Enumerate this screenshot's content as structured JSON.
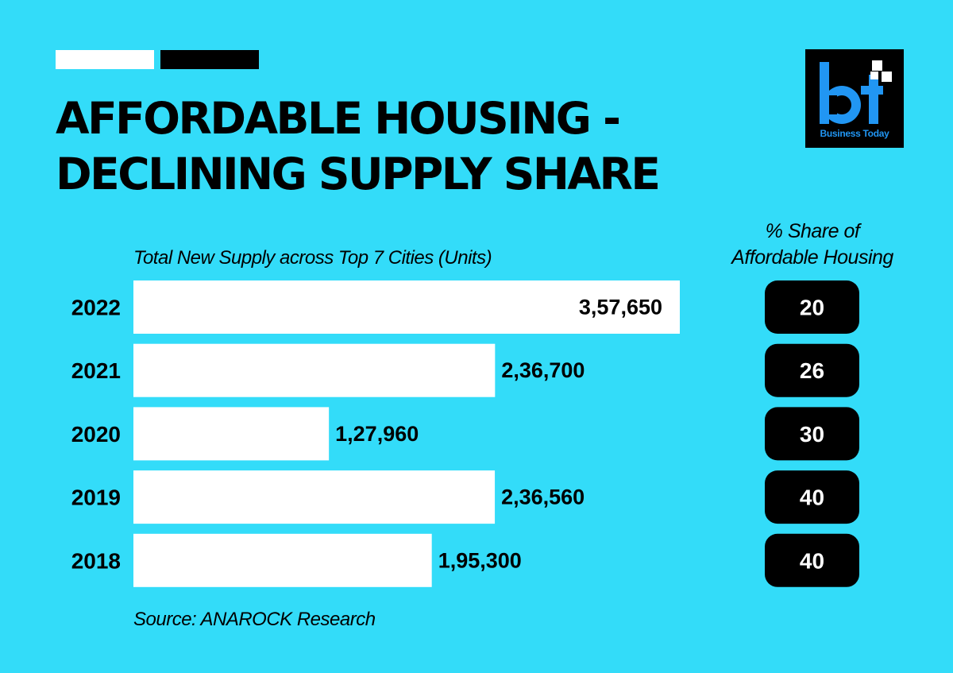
{
  "header": {
    "title_line1": "AFFORDABLE HOUSING -",
    "title_line2": "DECLINING SUPPLY SHARE"
  },
  "logo": {
    "mark": "bt",
    "caption": "Business Today"
  },
  "colors": {
    "background": "#33dcf9",
    "bar": "#ffffff",
    "badge": "#000000",
    "logo_blue": "#2196f3"
  },
  "source": "Source: ANAROCK Research",
  "chart_data": {
    "type": "bar",
    "orientation": "horizontal",
    "title": "AFFORDABLE HOUSING - DECLINING SUPPLY SHARE",
    "xlabel": "Total New Supply across Top 7 Cities (Units)",
    "categories": [
      "2022",
      "2021",
      "2020",
      "2019",
      "2018"
    ],
    "values": [
      357650,
      236700,
      127960,
      236560,
      195300
    ],
    "value_labels": [
      "3,57,650",
      "2,36,700",
      "1,27,960",
      "2,36,560",
      "1,95,300"
    ],
    "xlim": [
      0,
      357650
    ],
    "grid": false,
    "share": {
      "header_line1": "% Share of",
      "header_line2": "Affordable Housing",
      "values": [
        20,
        26,
        30,
        40,
        40
      ],
      "labels": [
        "20",
        "26",
        "30",
        "40",
        "40"
      ]
    }
  }
}
